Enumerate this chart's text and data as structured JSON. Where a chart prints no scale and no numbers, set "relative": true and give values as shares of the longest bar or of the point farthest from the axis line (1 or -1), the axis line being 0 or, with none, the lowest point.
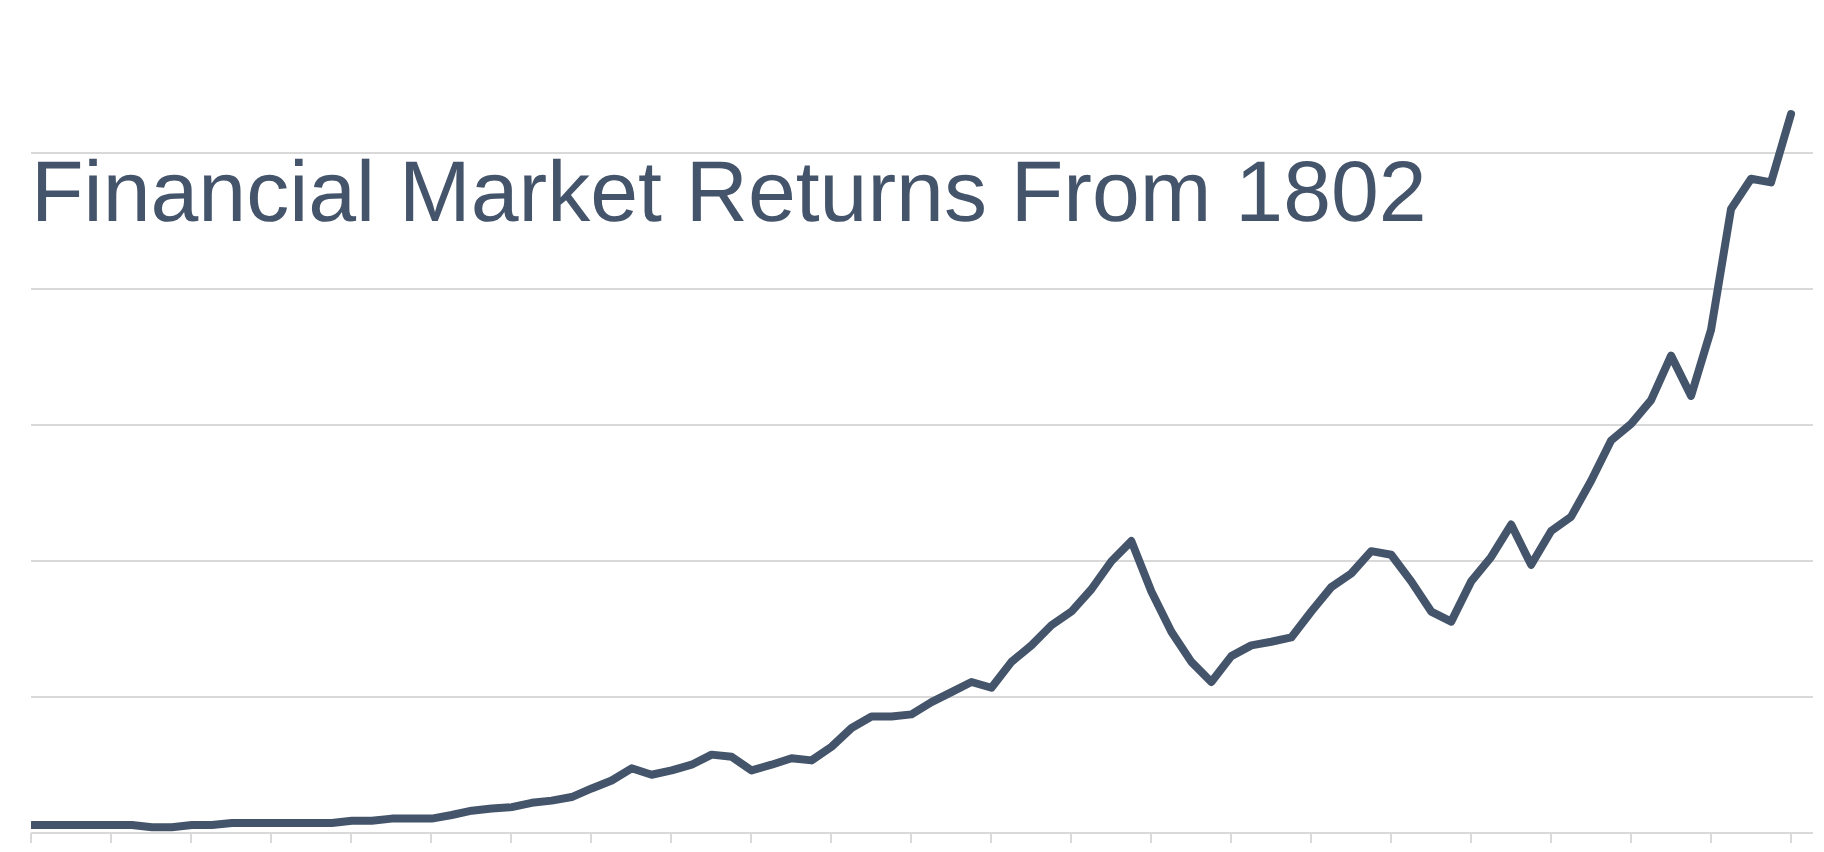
{
  "chart_data": {
    "type": "line",
    "title": "Financial Market Returns From 1802",
    "relative": true,
    "grid": "y",
    "marker": "none",
    "line_style": "solid",
    "categories": [
      null,
      null,
      null,
      null,
      null,
      null,
      null,
      null,
      null,
      null,
      null,
      null,
      null,
      null,
      null,
      null,
      null,
      null,
      null,
      null,
      null,
      null,
      null,
      null,
      null,
      null,
      null,
      null,
      null,
      null,
      null,
      null,
      null,
      null,
      null,
      null,
      null,
      null,
      null,
      null,
      null,
      null,
      null,
      null,
      null,
      null,
      null,
      null,
      null,
      null,
      null,
      null,
      null,
      null,
      null,
      null,
      null,
      null,
      null,
      null,
      null,
      null,
      null,
      null,
      null,
      null,
      null,
      null,
      null,
      null,
      null,
      null,
      null,
      null,
      null,
      null,
      null,
      null,
      null,
      null,
      null,
      null,
      null,
      null,
      null,
      null,
      null,
      null,
      null
    ],
    "series": [
      {
        "color": "#44546a",
        "values": [
          0.011,
          0.011,
          0.011,
          0.011,
          0.011,
          0.011,
          0.008,
          0.008,
          0.011,
          0.011,
          0.014,
          0.014,
          0.014,
          0.014,
          0.014,
          0.014,
          0.017,
          0.017,
          0.02,
          0.02,
          0.02,
          0.025,
          0.031,
          0.034,
          0.036,
          0.042,
          0.045,
          0.05,
          0.062,
          0.073,
          0.09,
          0.081,
          0.087,
          0.095,
          0.109,
          0.106,
          0.087,
          0.095,
          0.104,
          0.101,
          0.12,
          0.146,
          0.162,
          0.162,
          0.165,
          0.182,
          0.196,
          0.21,
          0.202,
          0.238,
          0.261,
          0.289,
          0.308,
          0.339,
          0.378,
          0.406,
          0.336,
          0.28,
          0.238,
          0.21,
          0.246,
          0.261,
          0.266,
          0.272,
          0.308,
          0.342,
          0.361,
          0.392,
          0.387,
          0.35,
          0.308,
          0.294,
          0.35,
          0.384,
          0.429,
          0.373,
          0.42,
          0.44,
          0.49,
          0.546,
          0.569,
          0.602,
          0.664,
          0.608,
          0.7,
          0.868,
          0.91,
          0.905,
          1.0
        ]
      }
    ]
  }
}
